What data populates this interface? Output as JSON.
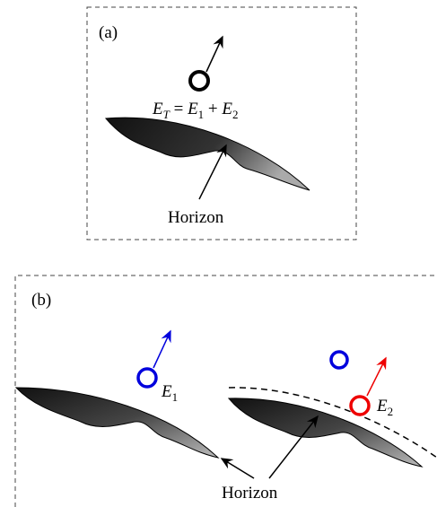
{
  "panel_a": {
    "label": "(a)",
    "equation": [
      "E",
      "T",
      " = ",
      "E",
      "1",
      " + ",
      "E",
      "2"
    ],
    "horizon_label": "Horizon"
  },
  "panel_b": {
    "label": "(b)",
    "e1_label": [
      "E",
      "1"
    ],
    "e2_label": [
      "E",
      "2"
    ],
    "horizon_label": "Horizon"
  }
}
